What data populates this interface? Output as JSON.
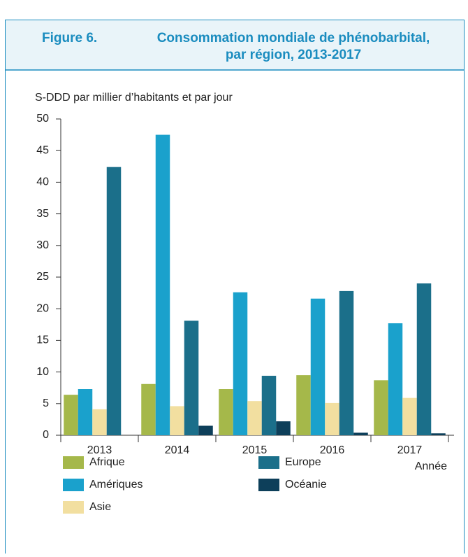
{
  "chart_data": {
    "type": "bar",
    "figure_label": "Figure 6.",
    "title": [
      "Consommation mondiale de phénobarbital,",
      "par région, 2013-2017"
    ],
    "ylabel": "S-DDD par millier d’habitants et par jour",
    "xlabel": "Année",
    "categories": [
      "2013",
      "2014",
      "2015",
      "2016",
      "2017"
    ],
    "series": [
      {
        "name": "Afrique",
        "color": "#a5b84a",
        "values": [
          6.4,
          8.1,
          7.3,
          9.5,
          8.7
        ]
      },
      {
        "name": "Amériques",
        "color": "#1aa1cc",
        "values": [
          7.3,
          47.5,
          22.6,
          21.6,
          17.7
        ]
      },
      {
        "name": "Asie",
        "color": "#f2dfa0",
        "values": [
          4.1,
          4.6,
          5.4,
          5.1,
          5.9
        ]
      },
      {
        "name": "Europe",
        "color": "#1b6f8a",
        "values": [
          42.4,
          18.1,
          9.4,
          22.8,
          24.0
        ]
      },
      {
        "name": "Océanie",
        "color": "#0d3f5a",
        "values": [
          0,
          1.5,
          2.2,
          0.4,
          0.3
        ]
      }
    ],
    "ylim": [
      0,
      50
    ],
    "yticks": [
      0,
      5,
      10,
      15,
      20,
      25,
      30,
      35,
      40,
      45,
      50
    ],
    "grid": false
  }
}
